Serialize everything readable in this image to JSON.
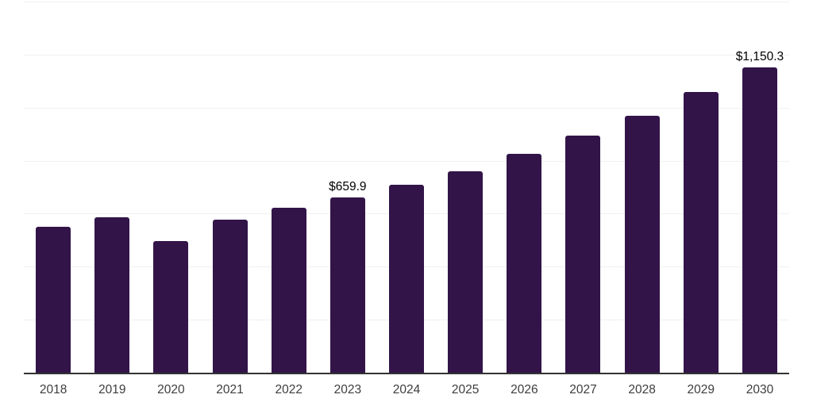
{
  "chart_data": {
    "type": "bar",
    "title": "",
    "xlabel": "",
    "ylabel": "",
    "categories": [
      "2018",
      "2019",
      "2020",
      "2021",
      "2022",
      "2023",
      "2024",
      "2025",
      "2026",
      "2027",
      "2028",
      "2029",
      "2030"
    ],
    "values": [
      549,
      585,
      498,
      576,
      622,
      659.9,
      709,
      761,
      825,
      895,
      969,
      1059,
      1150.3
    ],
    "bar_labels": [
      null,
      null,
      null,
      null,
      null,
      "$659.9",
      null,
      null,
      null,
      null,
      null,
      null,
      "$1,150.3"
    ],
    "ylim": [
      0,
      1400
    ],
    "gridline_step": 200,
    "grid": true,
    "legend": "none",
    "y_axis_tick_labels_visible": false,
    "colors": {
      "bar": "#321449",
      "gridline": "#f1f1f1",
      "axis": "#333333",
      "tick_label": "#3d3d3d",
      "data_label": "#000000",
      "background": "#ffffff"
    }
  }
}
